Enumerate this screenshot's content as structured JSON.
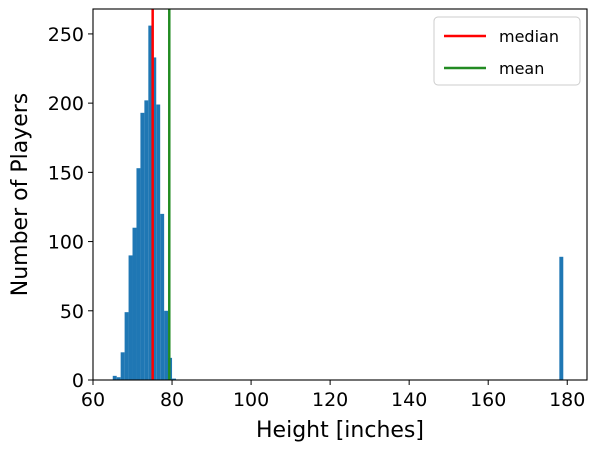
{
  "chart_data": {
    "type": "bar",
    "title": "",
    "xlabel": "Height [inches]",
    "ylabel": "Number of Players",
    "xlim": [
      60,
      185
    ],
    "ylim": [
      0,
      268
    ],
    "xticks": [
      60,
      80,
      100,
      120,
      140,
      160,
      180
    ],
    "yticks": [
      0,
      50,
      100,
      150,
      200,
      250
    ],
    "grid": false,
    "bin_width": 1,
    "bar_color": "#1f77b4",
    "bins": [
      {
        "x": 65.5,
        "count": 3
      },
      {
        "x": 66.5,
        "count": 2
      },
      {
        "x": 67.5,
        "count": 20
      },
      {
        "x": 68.5,
        "count": 49
      },
      {
        "x": 69.5,
        "count": 90
      },
      {
        "x": 70.5,
        "count": 110
      },
      {
        "x": 71.5,
        "count": 153
      },
      {
        "x": 72.5,
        "count": 193
      },
      {
        "x": 73.5,
        "count": 202
      },
      {
        "x": 74.5,
        "count": 256
      },
      {
        "x": 75.5,
        "count": 233
      },
      {
        "x": 76.5,
        "count": 199
      },
      {
        "x": 77.5,
        "count": 120
      },
      {
        "x": 78.5,
        "count": 50
      },
      {
        "x": 79.5,
        "count": 16
      },
      {
        "x": 80.5,
        "count": 1
      },
      {
        "x": 178.5,
        "count": 89
      }
    ],
    "vlines": [
      {
        "name": "median",
        "x": 75.1,
        "color": "#ff0000"
      },
      {
        "name": "mean",
        "x": 79.3,
        "color": "#228b22"
      }
    ],
    "legend": {
      "location": "top-right",
      "entries": [
        {
          "label": "median",
          "color": "#ff0000"
        },
        {
          "label": "mean",
          "color": "#228b22"
        }
      ]
    }
  }
}
